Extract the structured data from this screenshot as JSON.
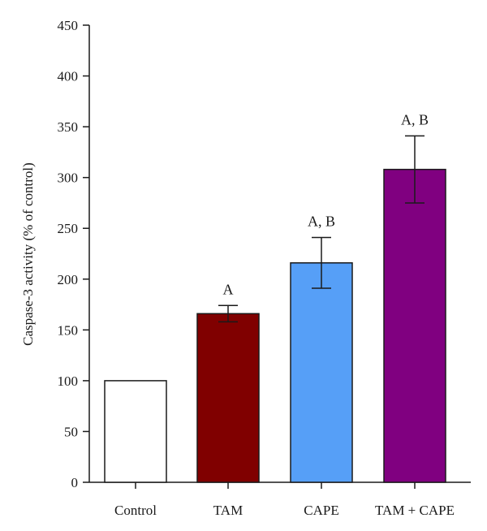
{
  "chart_data": {
    "type": "bar",
    "ylabel": "Caspase-3 activity (% of control)",
    "xlabel": "",
    "ylim": [
      0,
      450
    ],
    "yticks": [
      0,
      50,
      100,
      150,
      200,
      250,
      300,
      350,
      400,
      450
    ],
    "grid": false,
    "categories": [
      "Control",
      "TAM",
      "CAPE",
      "TAM + CAPE"
    ],
    "values": [
      100,
      166,
      216,
      308
    ],
    "errors": [
      0,
      8,
      25,
      33
    ],
    "annotations": [
      "",
      "A",
      "A, B",
      "A, B"
    ],
    "colors": [
      "#ffffff",
      "#800000",
      "#569ff7",
      "#800080"
    ]
  }
}
